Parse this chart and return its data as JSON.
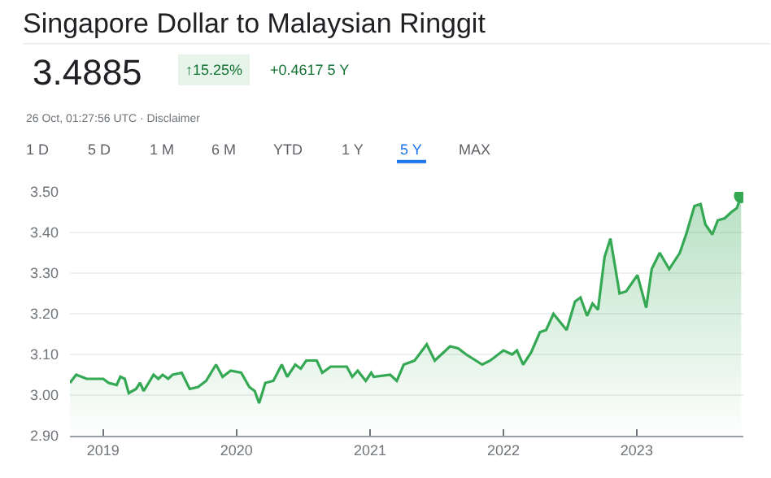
{
  "chart_data": {
    "type": "area",
    "title": "Singapore Dollar to Malaysian Ringgit",
    "annotations": [
      "3.4885",
      "↑15.25%",
      "+0.4617 5 Y",
      "26 Oct, 01:27:56 UTC · Disclaimer",
      "1 D",
      "5 D",
      "1 M",
      "6 M",
      "YTD",
      "1 Y",
      "5 Y",
      "MAX"
    ],
    "x": [
      "2018-10-02",
      "2018-10-19",
      "2018-11-17",
      "2019-01-01",
      "2019-01-16",
      "2019-02-07",
      "2019-02-17",
      "2019-03-01",
      "2019-03-12",
      "2019-04-01",
      "2019-04-12",
      "2019-04-22",
      "2019-05-19",
      "2019-06-01",
      "2019-06-13",
      "2019-06-28",
      "2019-07-10",
      "2019-08-04",
      "2019-08-26",
      "2019-09-18",
      "2019-10-10",
      "2019-11-06",
      "2019-11-24",
      "2019-12-16",
      "2020-01-14",
      "2020-02-05",
      "2020-02-20",
      "2020-03-03",
      "2020-03-20",
      "2020-04-11",
      "2020-05-04",
      "2020-05-19",
      "2020-06-10",
      "2020-06-25",
      "2020-07-10",
      "2020-08-08",
      "2020-08-23",
      "2020-09-15",
      "2020-10-29",
      "2020-11-13",
      "2020-11-28",
      "2020-12-20",
      "2021-01-04",
      "2021-01-11",
      "2021-02-25",
      "2021-03-15",
      "2021-04-03",
      "2021-05-03",
      "2021-06-05",
      "2021-06-27",
      "2021-08-08",
      "2021-08-30",
      "2021-09-21",
      "2021-11-04",
      "2021-11-26",
      "2022-01-01",
      "2022-01-25",
      "2022-02-07",
      "2022-02-24",
      "2022-03-18",
      "2022-04-11",
      "2022-04-28",
      "2022-05-18",
      "2022-06-05",
      "2022-06-23",
      "2022-07-16",
      "2022-07-31",
      "2022-08-18",
      "2022-09-02",
      "2022-09-17",
      "2022-10-05",
      "2022-10-21",
      "2022-11-15",
      "2022-12-03",
      "2023-01-03",
      "2023-01-27",
      "2023-02-11",
      "2023-03-05",
      "2023-03-31",
      "2023-04-29",
      "2023-05-18",
      "2023-06-08",
      "2023-06-25",
      "2023-07-08",
      "2023-07-27",
      "2023-08-11",
      "2023-08-30",
      "2023-09-17",
      "2023-10-02",
      "2023-10-14"
    ],
    "series": [
      {
        "color": "#34a853",
        "values": [
          3.03,
          3.05,
          3.04,
          3.04,
          3.03,
          3.025,
          3.045,
          3.04,
          3.005,
          3.015,
          3.03,
          3.01,
          3.05,
          3.04,
          3.05,
          3.04,
          3.05,
          3.055,
          3.015,
          3.02,
          3.035,
          3.075,
          3.045,
          3.06,
          3.055,
          3.02,
          3.01,
          2.98,
          3.03,
          3.035,
          3.075,
          3.045,
          3.075,
          3.065,
          3.085,
          3.085,
          3.055,
          3.07,
          3.07,
          3.045,
          3.06,
          3.035,
          3.055,
          3.045,
          3.05,
          3.035,
          3.075,
          3.085,
          3.125,
          3.085,
          3.12,
          3.115,
          3.1,
          3.075,
          3.085,
          3.11,
          3.1,
          3.11,
          3.075,
          3.105,
          3.155,
          3.16,
          3.2,
          3.18,
          3.16,
          3.23,
          3.24,
          3.195,
          3.225,
          3.21,
          3.34,
          3.385,
          3.25,
          3.255,
          3.295,
          3.215,
          3.31,
          3.35,
          3.31,
          3.35,
          3.4,
          3.465,
          3.47,
          3.42,
          3.395,
          3.43,
          3.435,
          3.45,
          3.46,
          3.49
        ]
      },
      {
        "type": "scatter",
        "marker": "circle",
        "color": "#34a853",
        "x": [
          "2023-10-14"
        ],
        "values": [
          3.49
        ]
      }
    ],
    "xlim": [
      "2018-10-02",
      "2023-10-20"
    ],
    "xticks": [
      {
        "value": "2019-01-01",
        "label": "2019"
      },
      {
        "value": "2020-01-01",
        "label": "2020"
      },
      {
        "value": "2021-01-01",
        "label": "2021"
      },
      {
        "value": "2022-01-01",
        "label": "2022"
      },
      {
        "value": "2023-01-01",
        "label": "2023"
      }
    ],
    "ylim": [
      2.9,
      3.5
    ],
    "yticks": [
      {
        "value": 2.9,
        "label": "2.90"
      },
      {
        "value": 3.0,
        "label": "3.00"
      },
      {
        "value": 3.1,
        "label": "3.10"
      },
      {
        "value": 3.2,
        "label": "3.20"
      },
      {
        "value": 3.3,
        "label": "3.30"
      },
      {
        "value": 3.4,
        "label": "3.40"
      },
      {
        "value": 3.5,
        "label": "3.50"
      }
    ],
    "grid": "y"
  }
}
